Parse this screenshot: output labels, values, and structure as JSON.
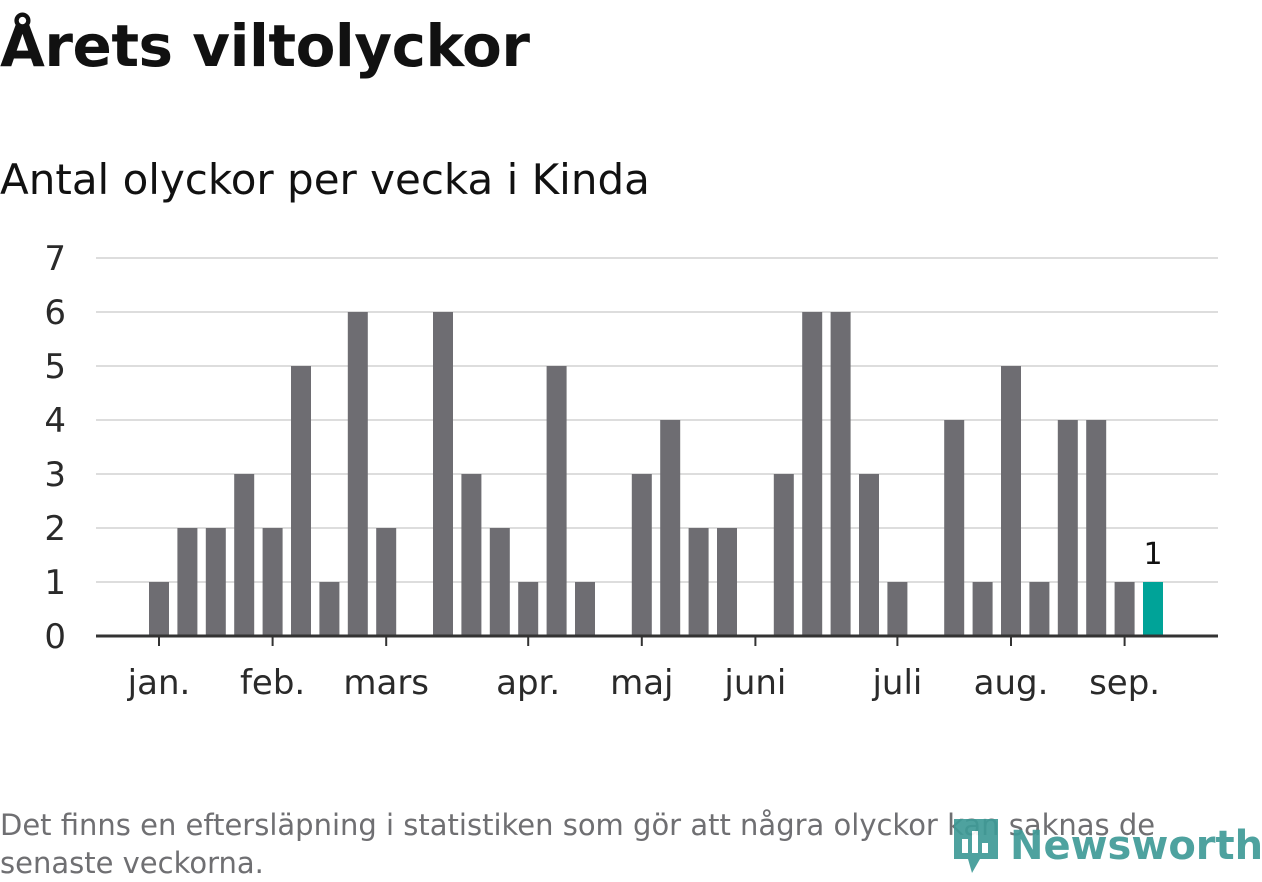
{
  "title": "Årets viltolyckor",
  "subtitle": "Antal olyckor per vecka i Kinda",
  "note": "Det finns en eftersläpning i statistiken som gör att några olyckor kan saknas de senaste veckorna.",
  "logo_text": "Newsworthy",
  "colors": {
    "bar": "#6e6d72",
    "highlight": "#00a398",
    "grid": "#dddddd",
    "axis": "#333333",
    "logo": "#3f9b97"
  },
  "chart_data": {
    "type": "bar",
    "title": "Årets viltolyckor",
    "subtitle": "Antal olyckor per vecka i Kinda",
    "xlabel": "",
    "ylabel": "",
    "ylim": [
      0,
      7
    ],
    "yticks": [
      0,
      1,
      2,
      3,
      4,
      5,
      6,
      7
    ],
    "grid": true,
    "x": [
      1,
      2,
      3,
      4,
      5,
      6,
      7,
      8,
      9,
      10,
      11,
      12,
      13,
      14,
      15,
      16,
      17,
      18,
      19,
      20,
      21,
      22,
      23,
      24,
      25,
      26,
      27,
      28,
      29,
      30,
      31,
      32,
      33,
      34,
      35,
      36,
      37,
      38
    ],
    "values": [
      0,
      1,
      2,
      2,
      3,
      2,
      5,
      1,
      6,
      2,
      0,
      6,
      3,
      2,
      1,
      5,
      1,
      0,
      3,
      4,
      2,
      2,
      0,
      3,
      6,
      6,
      3,
      1,
      0,
      4,
      1,
      5,
      1,
      4,
      4,
      1,
      1,
      0
    ],
    "highlight_index": 36,
    "highlight_label": "1",
    "month_ticks": [
      {
        "label": "jan.",
        "x": 2
      },
      {
        "label": "feb.",
        "x": 6
      },
      {
        "label": "mars",
        "x": 10
      },
      {
        "label": "apr.",
        "x": 15
      },
      {
        "label": "maj",
        "x": 19
      },
      {
        "label": "juni",
        "x": 23
      },
      {
        "label": "juli",
        "x": 28
      },
      {
        "label": "aug.",
        "x": 32
      },
      {
        "label": "sep.",
        "x": 36
      }
    ]
  }
}
